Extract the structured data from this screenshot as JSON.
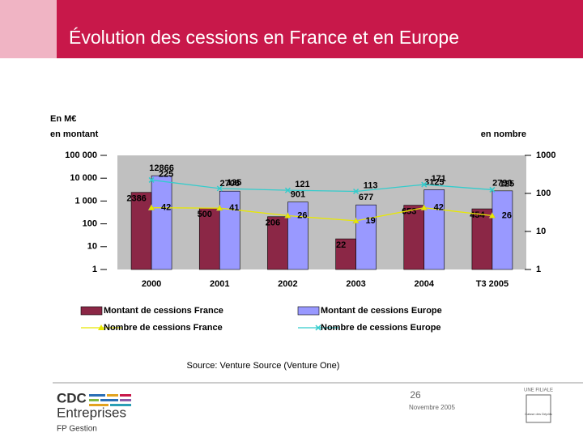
{
  "header": {
    "title": "Évolution des cessions en France et en Europe"
  },
  "chart_data": {
    "type": "bar",
    "unit_label": "En M€",
    "y_label": "en montant",
    "y2_label": "en nombre",
    "categories": [
      "2000",
      "2001",
      "2002",
      "2003",
      "2004",
      "T3 2005"
    ],
    "log_scale": true,
    "grid": false,
    "ylim": [
      1,
      100000
    ],
    "yticks": [
      1,
      10,
      100,
      {
        "value": 1000,
        "label": "1 000"
      },
      {
        "value": 10000,
        "label": "10 000"
      },
      {
        "value": 100000,
        "label": "100 000"
      }
    ],
    "y2lim": [
      1,
      1000
    ],
    "y2ticks": [
      1,
      10,
      100,
      1000
    ],
    "series": [
      {
        "name": "Montant de cessions France",
        "color": "#8b2746",
        "values": [
          2386,
          500,
          206,
          22,
          653,
          454
        ]
      },
      {
        "name": "Montant de cessions Europe",
        "color": "#9999ff",
        "values": [
          12866,
          2706,
          901,
          677,
          3125,
          2790
        ]
      },
      {
        "name": "Nombre de cessions France",
        "type": "line",
        "axis": "y2",
        "color": "#e8e800",
        "marker": "triangle",
        "values": [
          42,
          41,
          26,
          19,
          42,
          26
        ]
      },
      {
        "name": "Nombre de cessions Europe",
        "type": "line",
        "axis": "y2",
        "color": "#33cccc",
        "marker": "x",
        "values": [
          225,
          135,
          121,
          113,
          171,
          125
        ]
      }
    ],
    "source": "Source: Venture Source (Venture One)"
  },
  "footer": {
    "logo_top": "CDC",
    "logo_main": "Entreprises",
    "logo_sub": "FP Gestion",
    "page": "26",
    "date": "Novembre 2005",
    "affiliate": "UNE FILIALE",
    "parent": "Caisse des Dépôts"
  }
}
